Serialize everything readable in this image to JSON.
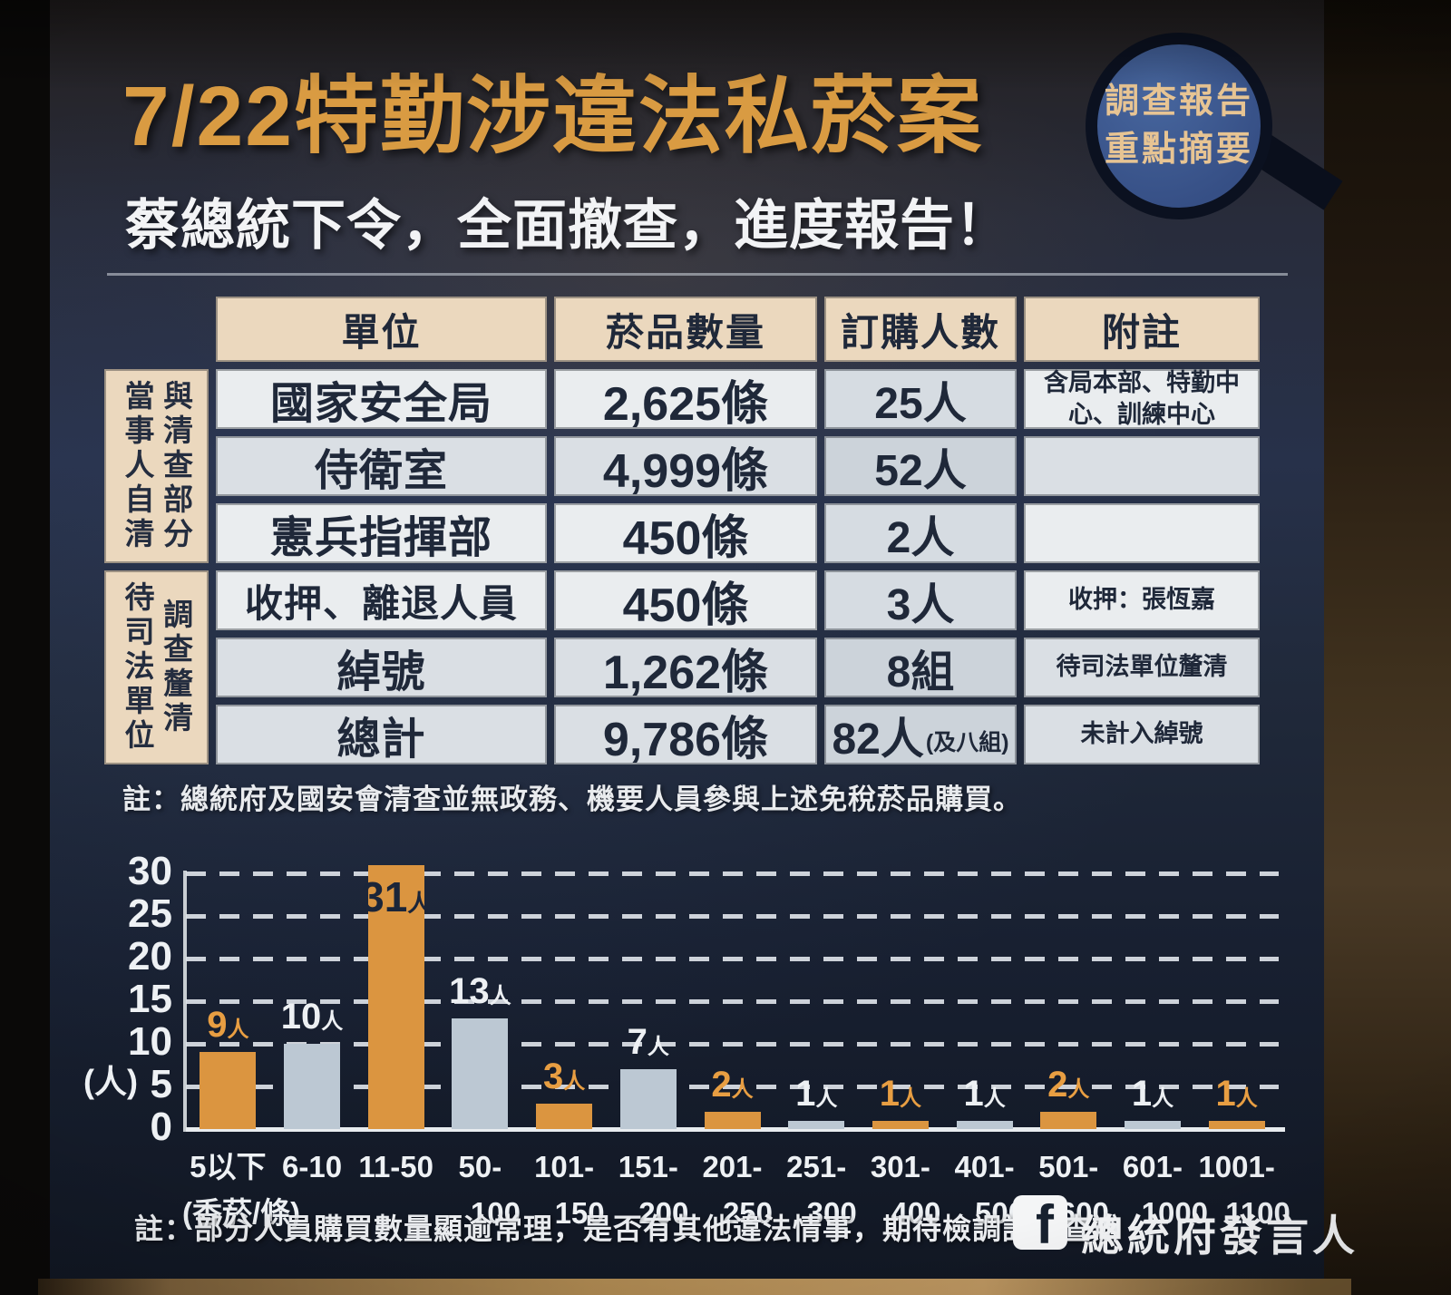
{
  "header": {
    "title": "7/22特勤涉違法私菸案",
    "subtitle": "蔡總統下令，全面撤查，進度報告！",
    "badge": {
      "line1": "調查報告",
      "line2": "重點摘要"
    }
  },
  "table": {
    "columns": [
      "單位",
      "菸品數量",
      "訂購人數",
      "附註"
    ],
    "row_groups": [
      {
        "lines": [
          "與清查部分",
          "當事人自清"
        ],
        "rows": 3
      },
      {
        "lines": [
          "調查釐清",
          "待司法單位"
        ],
        "rows": 3
      }
    ],
    "rows": [
      {
        "unit": "國家安全局",
        "quantity": "2,625條",
        "people": "25人",
        "people_note": "",
        "note": "含局本部、特勤中心、訓練中心"
      },
      {
        "unit": "侍衛室",
        "quantity": "4,999條",
        "people": "52人",
        "people_note": "",
        "note": ""
      },
      {
        "unit": "憲兵指揮部",
        "quantity": "450條",
        "people": "2人",
        "people_note": "",
        "note": ""
      },
      {
        "unit": "收押、離退人員",
        "quantity": "450條",
        "people": "3人",
        "people_note": "",
        "note": "收押：張恆嘉"
      },
      {
        "unit": "綽號",
        "quantity": "1,262條",
        "people": "8組",
        "people_note": "",
        "note": "待司法單位釐清"
      },
      {
        "unit": "總計",
        "quantity": "9,786條",
        "people": "82人",
        "people_note": "(及八組)",
        "note": "未計入綽號"
      }
    ],
    "footnote": "註：總統府及國安會清查並無政務、機要人員參與上述免稅菸品購買。"
  },
  "chart_data": {
    "type": "bar",
    "title": "",
    "ylabel": "(人)",
    "x_unit": "(香菸/條)",
    "categories": [
      "5以下",
      "6-10",
      "11-50",
      "50-100",
      "101-150",
      "151-200",
      "201-250",
      "251-300",
      "301-400",
      "401-500",
      "501-600",
      "601-1000",
      "1001-1100"
    ],
    "values": [
      9,
      10,
      31,
      13,
      3,
      7,
      2,
      1,
      1,
      1,
      2,
      1,
      1
    ],
    "bar_labels": [
      "9人",
      "10人",
      "31人",
      "13人",
      "3人",
      "7人",
      "2人",
      "1人",
      "1人",
      "1人",
      "2人",
      "1人",
      "1人"
    ],
    "tick_lines": [
      [
        "5以下",
        "(香菸/條)"
      ],
      [
        "6-10"
      ],
      [
        "11-50"
      ],
      [
        "50-",
        "100"
      ],
      [
        "101-",
        "150"
      ],
      [
        "151-",
        "200"
      ],
      [
        "201-",
        "250"
      ],
      [
        "251-",
        "300"
      ],
      [
        "301-",
        "400"
      ],
      [
        "401-",
        "500"
      ],
      [
        "501-",
        "600"
      ],
      [
        "601-",
        "1000"
      ],
      [
        "1001-",
        "1100"
      ]
    ],
    "yticks": [
      0,
      5,
      10,
      15,
      20,
      25,
      30
    ],
    "ylim": [
      0,
      31
    ],
    "grid": "horizontal-dashed",
    "legend": "none",
    "colors": {
      "orange": "#db9540",
      "blue": "#bcc8d3",
      "label_orange": "#e89e42",
      "label_white": "#edf0f3",
      "label_inside": "#1b2539"
    },
    "inside_label_index": 2
  },
  "footer": {
    "note": "註：部分人員購買數量顯逾常理，是否有其他違法情事，期待檢調詳予查辦",
    "fb_icon_letter": "f",
    "fb_label": "總統府發言人"
  }
}
